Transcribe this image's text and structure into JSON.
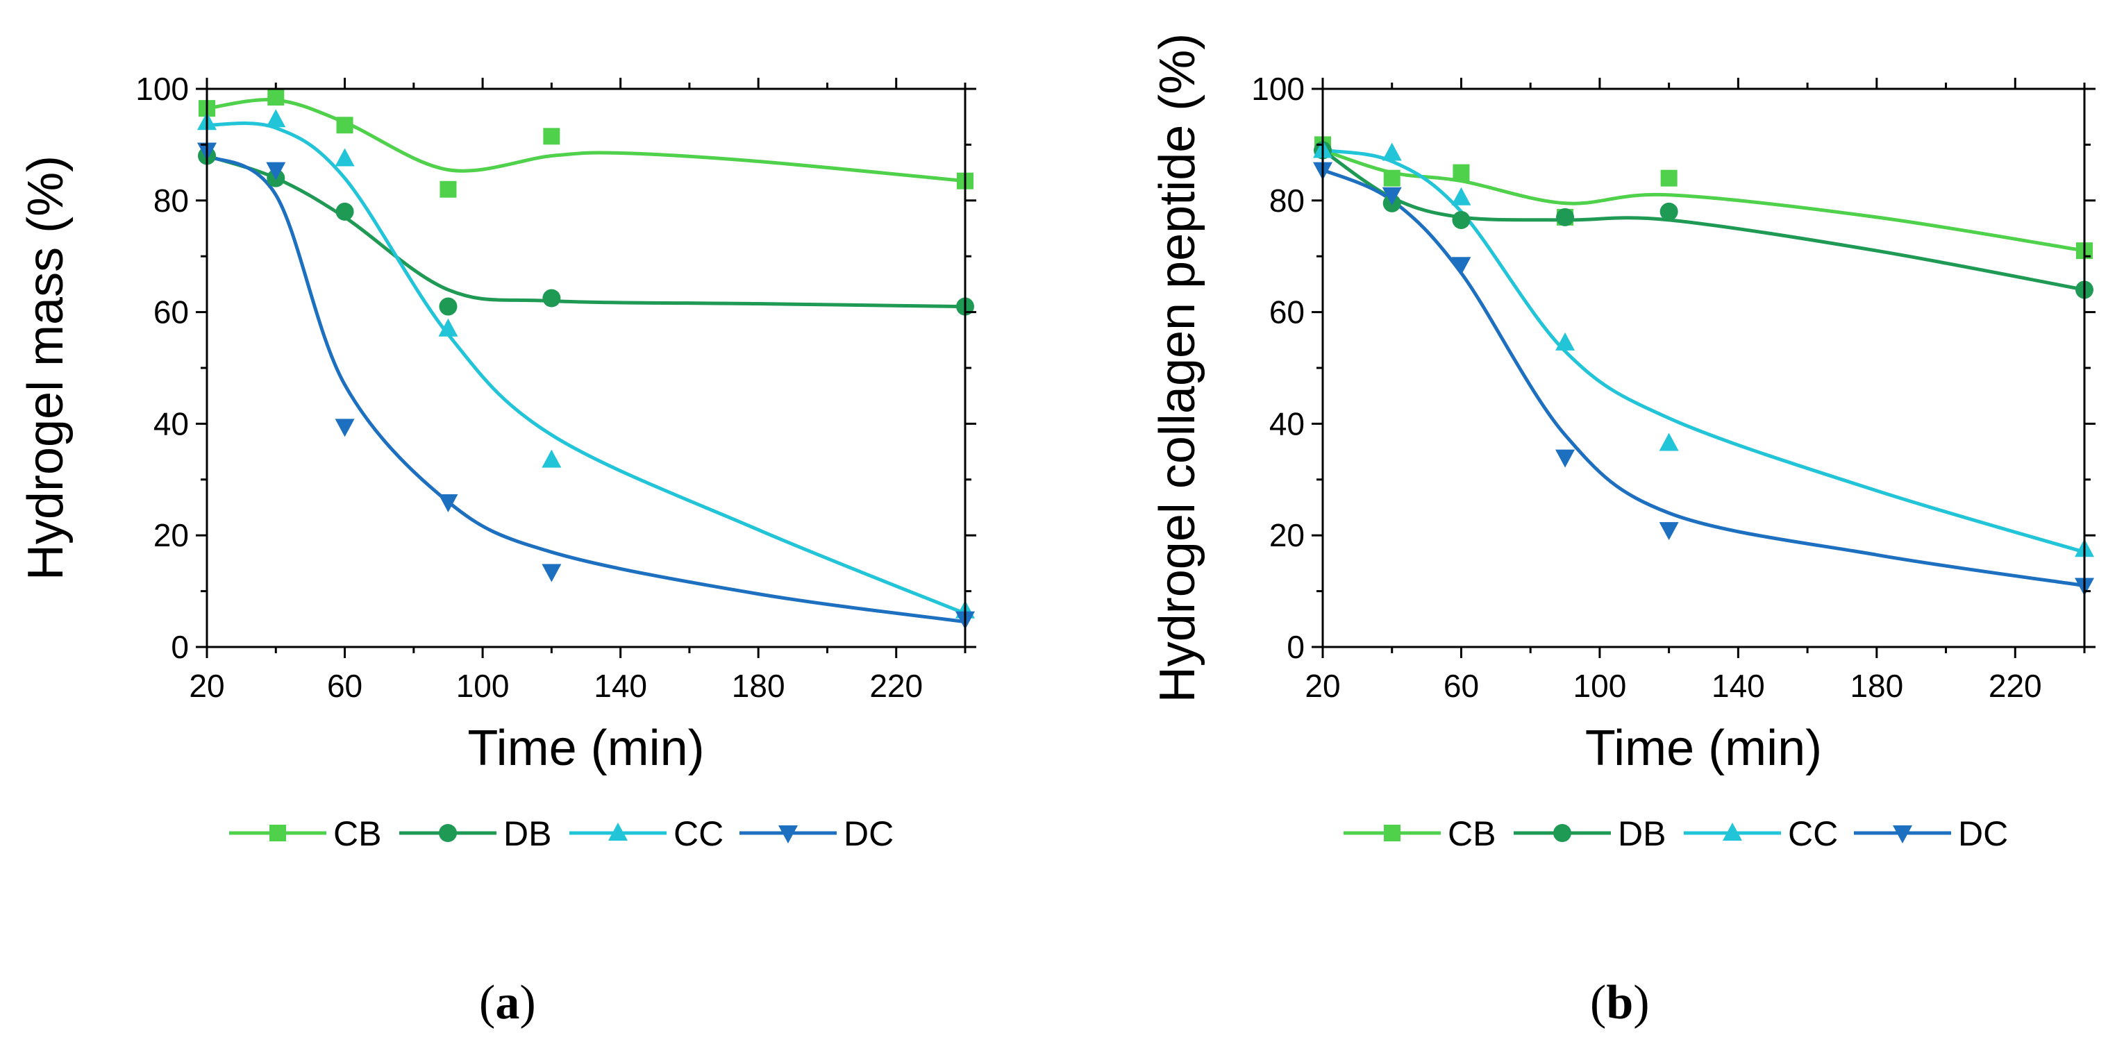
{
  "colors": {
    "CB": "#4fd14b",
    "DB": "#1e9a55",
    "CC": "#22c4d8",
    "DC": "#1d6fc0"
  },
  "panel_labels": {
    "a": "a",
    "b": "b"
  },
  "chart_data": [
    {
      "panel": "a",
      "type": "scatter",
      "xlabel": "Time (min)",
      "ylabel": "Hydrogel mass (%)",
      "xlim": [
        20,
        240
      ],
      "ylim": [
        0,
        100
      ],
      "xticks": [
        20,
        60,
        100,
        140,
        180,
        220
      ],
      "yticks": [
        0,
        20,
        40,
        60,
        80,
        100
      ],
      "legend": "bottom",
      "x": [
        20,
        40,
        60,
        90,
        120,
        240
      ],
      "series": [
        {
          "name": "CB",
          "marker": "square",
          "values": [
            96.5,
            98.5,
            93.5,
            82,
            91.5,
            83.5
          ],
          "fit": [
            [
              20,
              96.5
            ],
            [
              40,
              98
            ],
            [
              60,
              94
            ],
            [
              90,
              85.5
            ],
            [
              120,
              88
            ],
            [
              140,
              88.5
            ],
            [
              180,
              87
            ],
            [
              240,
              83.5
            ]
          ]
        },
        {
          "name": "DB",
          "marker": "circle",
          "values": [
            88,
            84,
            78,
            61,
            62.5,
            61
          ],
          "fit": [
            [
              20,
              88
            ],
            [
              40,
              84
            ],
            [
              60,
              77
            ],
            [
              90,
              64
            ],
            [
              120,
              62
            ],
            [
              180,
              61.5
            ],
            [
              240,
              61
            ]
          ]
        },
        {
          "name": "CC",
          "marker": "triangle-up",
          "values": [
            94,
            94.5,
            87.5,
            57,
            33.5,
            6.5
          ],
          "fit": [
            [
              20,
              93.5
            ],
            [
              40,
              93
            ],
            [
              60,
              84
            ],
            [
              90,
              56
            ],
            [
              120,
              38
            ],
            [
              180,
              21
            ],
            [
              240,
              6
            ]
          ]
        },
        {
          "name": "DC",
          "marker": "triangle-down",
          "values": [
            89,
            85.5,
            39.5,
            26,
            13.5,
            5
          ],
          "fit": [
            [
              20,
              88
            ],
            [
              40,
              81
            ],
            [
              60,
              47
            ],
            [
              90,
              26
            ],
            [
              120,
              17
            ],
            [
              180,
              9.5
            ],
            [
              240,
              4.5
            ]
          ]
        }
      ]
    },
    {
      "panel": "b",
      "type": "scatter",
      "xlabel": "Time (min)",
      "ylabel": "Hydrogel collagen peptide (%)",
      "xlim": [
        20,
        240
      ],
      "ylim": [
        0,
        100
      ],
      "xticks": [
        20,
        60,
        100,
        140,
        180,
        220
      ],
      "yticks": [
        0,
        20,
        40,
        60,
        80,
        100
      ],
      "legend": "bottom",
      "x": [
        20,
        40,
        60,
        90,
        120,
        240
      ],
      "series": [
        {
          "name": "CB",
          "marker": "square",
          "values": [
            90,
            84,
            85,
            77,
            84,
            71
          ],
          "fit": [
            [
              20,
              89
            ],
            [
              40,
              85
            ],
            [
              60,
              83.5
            ],
            [
              90,
              79.5
            ],
            [
              120,
              81
            ],
            [
              180,
              77
            ],
            [
              240,
              71
            ]
          ]
        },
        {
          "name": "DB",
          "marker": "circle",
          "values": [
            89,
            79.5,
            76.5,
            77,
            78,
            64
          ],
          "fit": [
            [
              20,
              89
            ],
            [
              40,
              80.5
            ],
            [
              60,
              77
            ],
            [
              90,
              76.5
            ],
            [
              120,
              76.5
            ],
            [
              180,
              71
            ],
            [
              240,
              64
            ]
          ]
        },
        {
          "name": "CC",
          "marker": "triangle-up",
          "values": [
            89,
            88.5,
            80.5,
            54.5,
            36.5,
            17.5
          ],
          "fit": [
            [
              20,
              89
            ],
            [
              40,
              87
            ],
            [
              60,
              78
            ],
            [
              90,
              53
            ],
            [
              120,
              41
            ],
            [
              180,
              28
            ],
            [
              240,
              17
            ]
          ]
        },
        {
          "name": "DC",
          "marker": "triangle-down",
          "values": [
            85.5,
            81,
            68.5,
            34,
            21,
            11
          ],
          "fit": [
            [
              20,
              85.5
            ],
            [
              40,
              80
            ],
            [
              60,
              67
            ],
            [
              90,
              38
            ],
            [
              120,
              24
            ],
            [
              180,
              16.5
            ],
            [
              240,
              11
            ]
          ]
        }
      ]
    }
  ]
}
